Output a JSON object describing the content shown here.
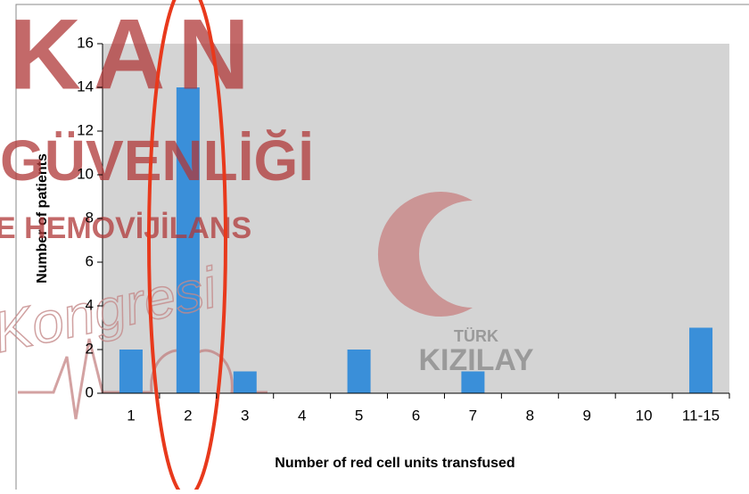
{
  "chart_data": {
    "type": "bar",
    "x_label": "Number of red cell units transfused",
    "y_label": "Number of patients",
    "categories": [
      "1",
      "2",
      "3",
      "4",
      "5",
      "6",
      "7",
      "8",
      "9",
      "10",
      "11-15"
    ],
    "values": [
      2,
      14,
      1,
      0,
      2,
      0,
      1,
      0,
      0,
      0,
      3
    ],
    "color": "#3a8fd9",
    "ylim": [
      0,
      16
    ],
    "yticks": [
      0,
      2,
      4,
      6,
      8,
      10,
      12,
      14,
      16
    ],
    "grid": false,
    "annotations": [
      "KAN",
      "GÜVENLİĞİ",
      "E HEMOVİJİLANS",
      "Kongresi",
      "TÜRK",
      "KIZILAY"
    ]
  }
}
